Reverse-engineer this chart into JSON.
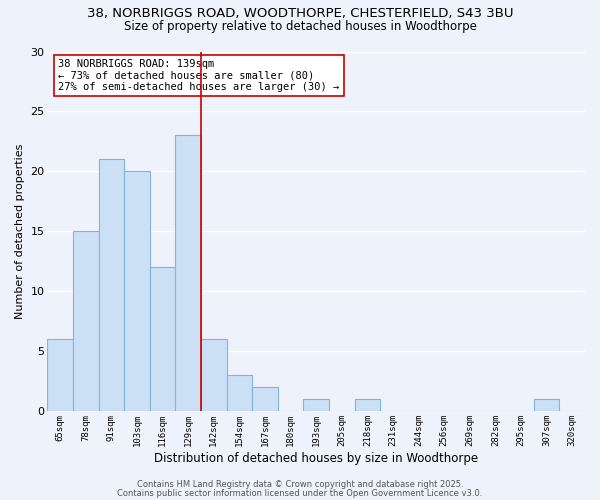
{
  "title": "38, NORBRIGGS ROAD, WOODTHORPE, CHESTERFIELD, S43 3BU",
  "subtitle": "Size of property relative to detached houses in Woodthorpe",
  "xlabel": "Distribution of detached houses by size in Woodthorpe",
  "ylabel": "Number of detached properties",
  "bar_labels": [
    "65sqm",
    "78sqm",
    "91sqm",
    "103sqm",
    "116sqm",
    "129sqm",
    "142sqm",
    "154sqm",
    "167sqm",
    "180sqm",
    "193sqm",
    "205sqm",
    "218sqm",
    "231sqm",
    "244sqm",
    "256sqm",
    "269sqm",
    "282sqm",
    "295sqm",
    "307sqm",
    "320sqm"
  ],
  "bar_values": [
    6,
    15,
    21,
    20,
    12,
    23,
    6,
    3,
    2,
    0,
    1,
    0,
    1,
    0,
    0,
    0,
    0,
    0,
    0,
    1,
    0
  ],
  "bar_color": "#cce0f5",
  "bar_edgecolor": "#82b4e0",
  "vline_x": 6,
  "vline_color": "#cc0000",
  "annotation_text": "38 NORBRIGGS ROAD: 139sqm\n← 73% of detached houses are smaller (80)\n27% of semi-detached houses are larger (30) →",
  "annotation_box_color": "#ffffff",
  "annotation_box_edgecolor": "#cc0000",
  "ylim": [
    0,
    30
  ],
  "yticks": [
    0,
    5,
    10,
    15,
    20,
    25,
    30
  ],
  "footer_line1": "Contains HM Land Registry data © Crown copyright and database right 2025.",
  "footer_line2": "Contains public sector information licensed under the Open Government Licence v3.0.",
  "background_color": "#eef2fb",
  "grid_color": "#ffffff",
  "title_fontsize": 9.5,
  "subtitle_fontsize": 8.5,
  "xlabel_fontsize": 8.5,
  "ylabel_fontsize": 8,
  "annotation_fontsize": 7.5,
  "footer_fontsize": 6
}
